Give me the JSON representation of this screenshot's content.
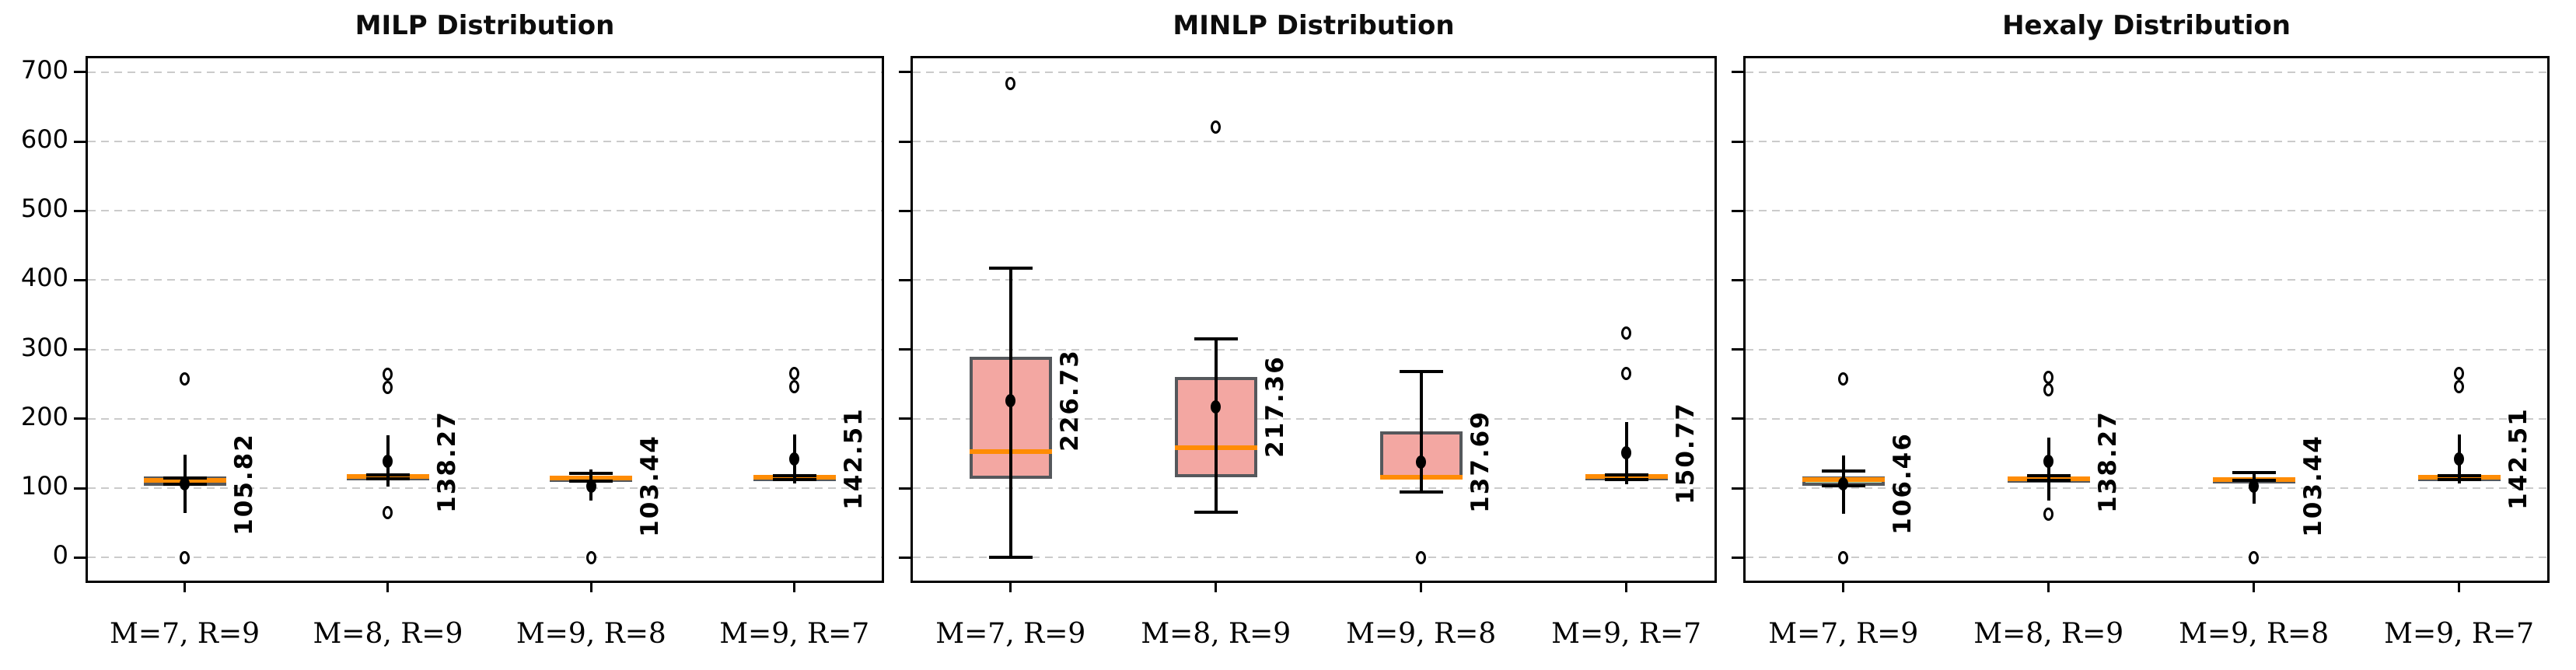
{
  "chart_data": {
    "type": "box",
    "figure_kind": "grouped-boxplots-with-mean-errorbars",
    "categories": [
      "M=7, R=9",
      "M=8, R=9",
      "M=9, R=8",
      "M=9, R=7"
    ],
    "y_axis": {
      "ticks": [
        0,
        100,
        200,
        300,
        400,
        500,
        600,
        700
      ],
      "tick_labels": [
        "0",
        "100",
        "200",
        "300",
        "400",
        "500",
        "600",
        "700"
      ],
      "range": [
        -40,
        720
      ],
      "gridlines": "dashed"
    },
    "legend_position": "none",
    "panels": [
      {
        "title": "MILP Distribution",
        "groups": [
          {
            "category": "M=7, R=9",
            "q1": 104,
            "median": 111,
            "q3": 117,
            "whisker_low": 106,
            "whisker_high": 115,
            "errbar_low": 64,
            "errbar_high": 148,
            "mean": 105.82,
            "mean_label": "105.82",
            "outliers": [
              0,
              258
            ],
            "fill": "white"
          },
          {
            "category": "M=8, R=9",
            "q1": 113,
            "median": 117,
            "q3": 120,
            "whisker_low": 114,
            "whisker_high": 119,
            "errbar_low": 102,
            "errbar_high": 176,
            "mean": 138.27,
            "mean_label": "138.27",
            "outliers": [
              65,
              245,
              264
            ],
            "fill": "pink"
          },
          {
            "category": "M=9, R=8",
            "q1": 111,
            "median": 115,
            "q3": 118,
            "whisker_low": 110,
            "whisker_high": 121,
            "errbar_low": 82,
            "errbar_high": 127,
            "mean": 103.44,
            "mean_label": "103.44",
            "outliers": [
              0
            ],
            "fill": "pink"
          },
          {
            "category": "M=9, R=7",
            "q1": 112,
            "median": 116,
            "q3": 119,
            "whisker_low": 113,
            "whisker_high": 118,
            "errbar_low": 107,
            "errbar_high": 177,
            "mean": 142.51,
            "mean_label": "142.51",
            "outliers": [
              246,
              266
            ],
            "fill": "pink"
          }
        ]
      },
      {
        "title": "MINLP Distribution",
        "groups": [
          {
            "category": "M=7, R=9",
            "q1": 114,
            "median": 153,
            "q3": 290,
            "whisker_low": 0,
            "whisker_high": 417,
            "errbar_low": 37,
            "errbar_high": 417,
            "mean": 226.73,
            "mean_label": "226.73",
            "outliers": [
              684
            ],
            "fill": "pink"
          },
          {
            "category": "M=8, R=9",
            "q1": 116,
            "median": 158,
            "q3": 260,
            "whisker_low": 65,
            "whisker_high": 315,
            "errbar_low": 80,
            "errbar_high": 315,
            "mean": 217.36,
            "mean_label": "217.36",
            "outliers": [
              621
            ],
            "fill": "pink"
          },
          {
            "category": "M=9, R=8",
            "q1": 113,
            "median": 116,
            "q3": 182,
            "whisker_low": 95,
            "whisker_high": 268,
            "errbar_low": 95,
            "errbar_high": 268,
            "mean": 137.69,
            "mean_label": "137.69",
            "outliers": [
              0
            ],
            "fill": "pink"
          },
          {
            "category": "M=9, R=7",
            "q1": 112,
            "median": 117,
            "q3": 120,
            "whisker_low": 113,
            "whisker_high": 119,
            "errbar_low": 106,
            "errbar_high": 195,
            "mean": 150.77,
            "mean_label": "150.77",
            "outliers": [
              265,
              324
            ],
            "fill": "pink"
          }
        ]
      },
      {
        "title": "Hexaly Distribution",
        "groups": [
          {
            "category": "M=7, R=9",
            "q1": 103,
            "median": 112,
            "q3": 117,
            "whisker_low": 104,
            "whisker_high": 125,
            "errbar_low": 63,
            "errbar_high": 147,
            "mean": 106.46,
            "mean_label": "106.46",
            "outliers": [
              0,
              258
            ],
            "fill": "green"
          },
          {
            "category": "M=8, R=9",
            "q1": 110,
            "median": 114,
            "q3": 117,
            "whisker_low": 111,
            "whisker_high": 118,
            "errbar_low": 82,
            "errbar_high": 173,
            "mean": 138.27,
            "mean_label": "138.27",
            "outliers": [
              63,
              242,
              260
            ],
            "fill": "pink"
          },
          {
            "category": "M=9, R=8",
            "q1": 110,
            "median": 113,
            "q3": 116,
            "whisker_low": 111,
            "whisker_high": 122,
            "errbar_low": 78,
            "errbar_high": 123,
            "mean": 103.44,
            "mean_label": "103.44",
            "outliers": [
              0
            ],
            "fill": "pink"
          },
          {
            "category": "M=9, R=7",
            "q1": 112,
            "median": 116,
            "q3": 119,
            "whisker_low": 113,
            "whisker_high": 118,
            "errbar_low": 107,
            "errbar_high": 177,
            "mean": 142.51,
            "mean_label": "142.51",
            "outliers": [
              246,
              266
            ],
            "fill": "pink"
          }
        ]
      }
    ],
    "colors": {
      "box_fill_pink": "#f3a7a2",
      "box_fill_green": "#b8dfae",
      "box_fill_white": "#ffffff",
      "box_edge": "#55585c",
      "median": "#ff8c05",
      "whisker": "#000000",
      "mean_marker": "#000000",
      "outlier_edge": "#000000",
      "grid": "#cbcbcb",
      "background": "#ffffff"
    }
  }
}
